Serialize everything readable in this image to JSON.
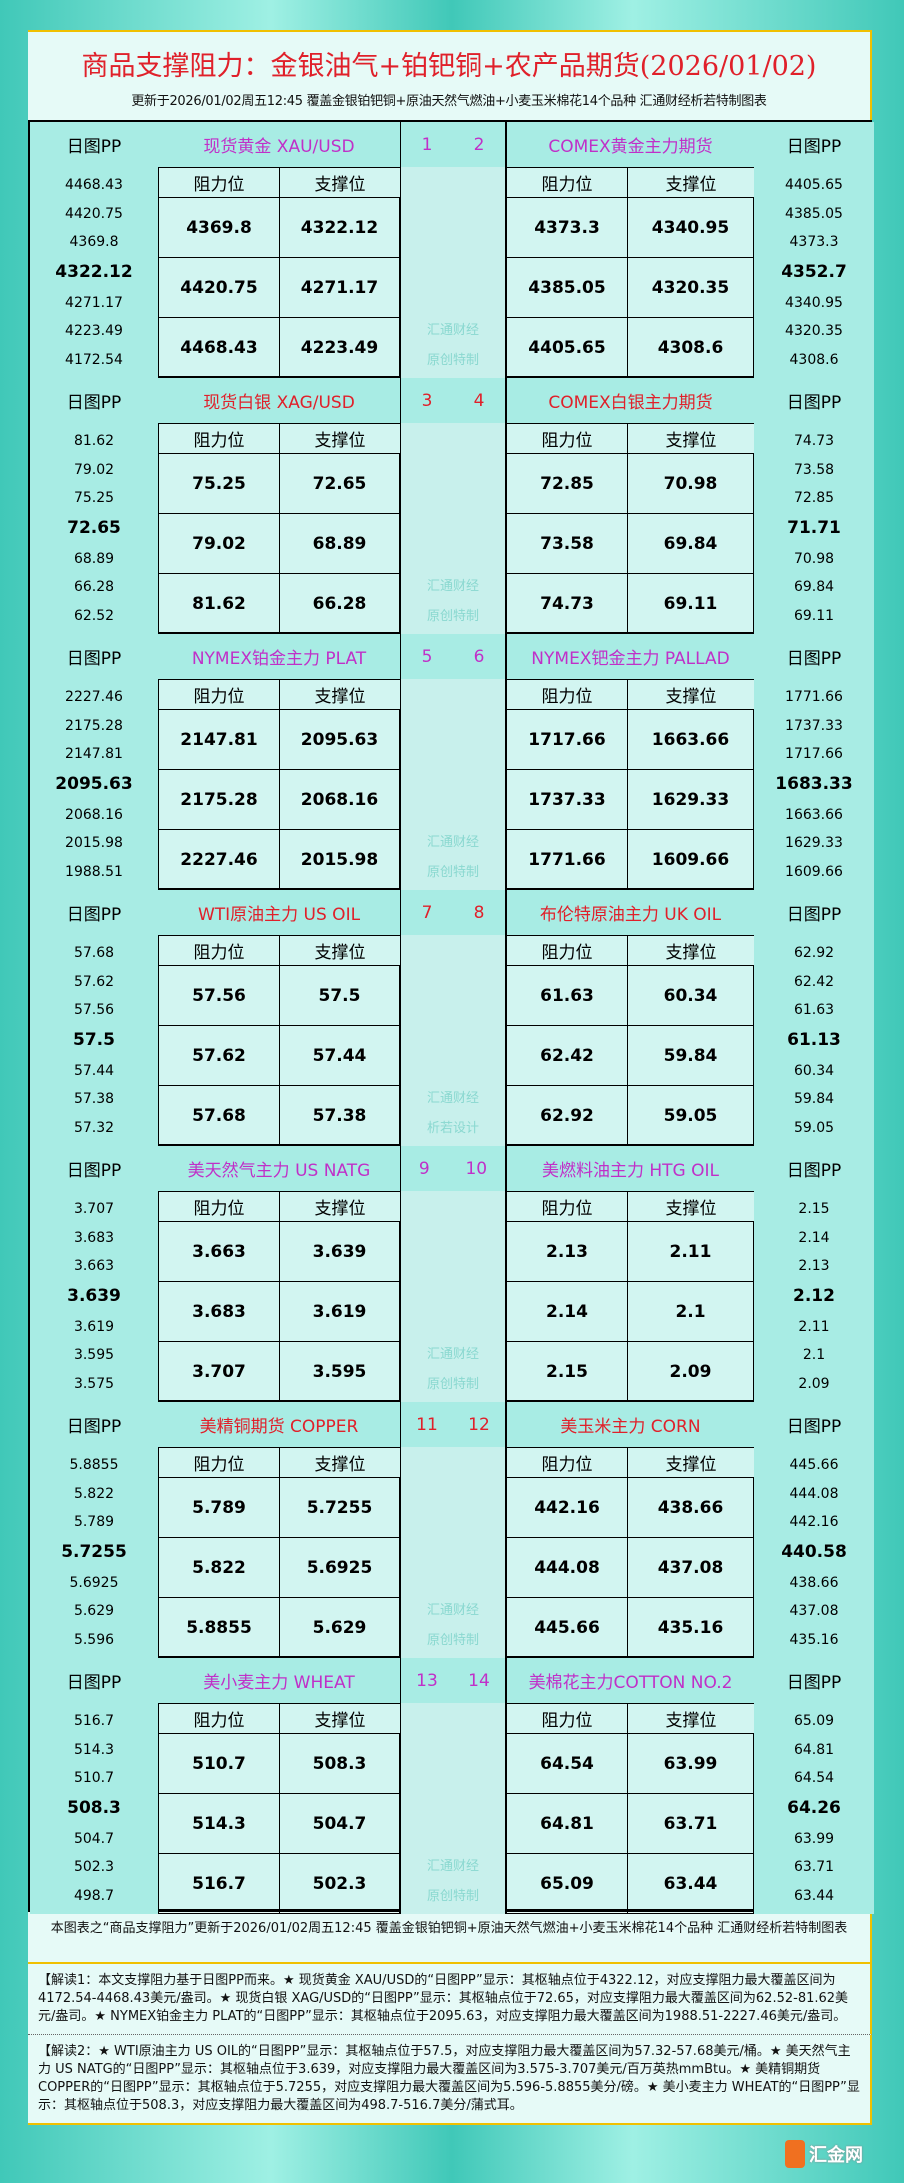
{
  "header": {
    "title": "商品支撑阻力：金银油气+铂钯铜+农产品期货(2026/01/02)",
    "subtitle": "更新于2026/01/02周五12:45 覆盖金银铂钯铜+原油天然气燃油+小麦玉米棉花14个品种 汇通财经析若特制图表"
  },
  "labels": {
    "pp": "日图PP",
    "resistance": "阻力位",
    "support": "支撑位"
  },
  "colors": {
    "red": "#e0202a",
    "purple": "#c030c8",
    "accent_border": "#f0c000"
  },
  "blocks": [
    {
      "color": "purple",
      "left": {
        "name": "现货黄金 XAU/USD",
        "num": "1",
        "pp": [
          "4468.43",
          "4420.75",
          "4369.8",
          "4322.12",
          "4271.17",
          "4223.49",
          "4172.54"
        ],
        "rows": [
          [
            "4369.8",
            "4322.12"
          ],
          [
            "4420.75",
            "4271.17"
          ],
          [
            "4468.43",
            "4223.49"
          ]
        ]
      },
      "right": {
        "name": "COMEX黄金主力期货",
        "num": "2",
        "pp": [
          "4405.65",
          "4385.05",
          "4373.3",
          "4352.7",
          "4340.95",
          "4320.35",
          "4308.6"
        ],
        "rows": [
          [
            "4373.3",
            "4340.95"
          ],
          [
            "4385.05",
            "4320.35"
          ],
          [
            "4405.65",
            "4308.6"
          ]
        ]
      },
      "mark": [
        "汇通财经",
        "原创特制"
      ]
    },
    {
      "color": "red",
      "left": {
        "name": "现货白银 XAG/USD",
        "num": "3",
        "pp": [
          "81.62",
          "79.02",
          "75.25",
          "72.65",
          "68.89",
          "66.28",
          "62.52"
        ],
        "rows": [
          [
            "75.25",
            "72.65"
          ],
          [
            "79.02",
            "68.89"
          ],
          [
            "81.62",
            "66.28"
          ]
        ]
      },
      "right": {
        "name": "COMEX白银主力期货",
        "num": "4",
        "pp": [
          "74.73",
          "73.58",
          "72.85",
          "71.71",
          "70.98",
          "69.84",
          "69.11"
        ],
        "rows": [
          [
            "72.85",
            "70.98"
          ],
          [
            "73.58",
            "69.84"
          ],
          [
            "74.73",
            "69.11"
          ]
        ]
      },
      "mark": [
        "汇通财经",
        "原创特制"
      ]
    },
    {
      "color": "purple",
      "left": {
        "name": "NYMEX铂金主力 PLAT",
        "num": "5",
        "pp": [
          "2227.46",
          "2175.28",
          "2147.81",
          "2095.63",
          "2068.16",
          "2015.98",
          "1988.51"
        ],
        "rows": [
          [
            "2147.81",
            "2095.63"
          ],
          [
            "2175.28",
            "2068.16"
          ],
          [
            "2227.46",
            "2015.98"
          ]
        ]
      },
      "right": {
        "name": "NYMEX钯金主力 PALLAD",
        "num": "6",
        "pp": [
          "1771.66",
          "1737.33",
          "1717.66",
          "1683.33",
          "1663.66",
          "1629.33",
          "1609.66"
        ],
        "rows": [
          [
            "1717.66",
            "1663.66"
          ],
          [
            "1737.33",
            "1629.33"
          ],
          [
            "1771.66",
            "1609.66"
          ]
        ]
      },
      "mark": [
        "汇通财经",
        "原创特制"
      ]
    },
    {
      "color": "red",
      "left": {
        "name": "WTI原油主力 US OIL",
        "num": "7",
        "pp": [
          "57.68",
          "57.62",
          "57.56",
          "57.5",
          "57.44",
          "57.38",
          "57.32"
        ],
        "rows": [
          [
            "57.56",
            "57.5"
          ],
          [
            "57.62",
            "57.44"
          ],
          [
            "57.68",
            "57.38"
          ]
        ]
      },
      "right": {
        "name": "布伦特原油主力 UK OIL",
        "num": "8",
        "pp": [
          "62.92",
          "62.42",
          "61.63",
          "61.13",
          "60.34",
          "59.84",
          "59.05"
        ],
        "rows": [
          [
            "61.63",
            "60.34"
          ],
          [
            "62.42",
            "59.84"
          ],
          [
            "62.92",
            "59.05"
          ]
        ]
      },
      "mark": [
        "汇通财经",
        "析若设计"
      ]
    },
    {
      "color": "purple",
      "left": {
        "name": "美天然气主力 US NATG",
        "num": "9",
        "pp": [
          "3.707",
          "3.683",
          "3.663",
          "3.639",
          "3.619",
          "3.595",
          "3.575"
        ],
        "rows": [
          [
            "3.663",
            "3.639"
          ],
          [
            "3.683",
            "3.619"
          ],
          [
            "3.707",
            "3.595"
          ]
        ]
      },
      "right": {
        "name": "美燃料油主力 HTG OIL",
        "num": "10",
        "pp": [
          "2.15",
          "2.14",
          "2.13",
          "2.12",
          "2.11",
          "2.1",
          "2.09"
        ],
        "rows": [
          [
            "2.13",
            "2.11"
          ],
          [
            "2.14",
            "2.1"
          ],
          [
            "2.15",
            "2.09"
          ]
        ]
      },
      "mark": [
        "汇通财经",
        "原创特制"
      ]
    },
    {
      "color": "red",
      "left": {
        "name": "美精铜期货 COPPER",
        "num": "11",
        "pp": [
          "5.8855",
          "5.822",
          "5.789",
          "5.7255",
          "5.6925",
          "5.629",
          "5.596"
        ],
        "rows": [
          [
            "5.789",
            "5.7255"
          ],
          [
            "5.822",
            "5.6925"
          ],
          [
            "5.8855",
            "5.629"
          ]
        ]
      },
      "right": {
        "name": "美玉米主力 CORN",
        "num": "12",
        "pp": [
          "445.66",
          "444.08",
          "442.16",
          "440.58",
          "438.66",
          "437.08",
          "435.16"
        ],
        "rows": [
          [
            "442.16",
            "438.66"
          ],
          [
            "444.08",
            "437.08"
          ],
          [
            "445.66",
            "435.16"
          ]
        ]
      },
      "mark": [
        "汇通财经",
        "原创特制"
      ]
    },
    {
      "color": "purple",
      "left": {
        "name": "美小麦主力 WHEAT",
        "num": "13",
        "pp": [
          "516.7",
          "514.3",
          "510.7",
          "508.3",
          "504.7",
          "502.3",
          "498.7"
        ],
        "rows": [
          [
            "510.7",
            "508.3"
          ],
          [
            "514.3",
            "504.7"
          ],
          [
            "516.7",
            "502.3"
          ]
        ]
      },
      "right": {
        "name": "美棉花主力COTTON NO.2",
        "num": "14",
        "pp": [
          "65.09",
          "64.81",
          "64.54",
          "64.26",
          "63.99",
          "63.71",
          "63.44"
        ],
        "rows": [
          [
            "64.54",
            "63.99"
          ],
          [
            "64.81",
            "63.71"
          ],
          [
            "65.09",
            "63.44"
          ]
        ]
      },
      "mark": [
        "汇通财经",
        "原创特制"
      ]
    }
  ],
  "footer": {
    "note": "本图表之“商品支撑阻力”更新于2026/01/02周五12:45 覆盖金银铂钯铜+原油天然气燃油+小麦玉米棉花14个品种 汇通财经析若特制图表",
    "interp1": "【解读1：本文支撑阻力基于日图PP而来。★ 现货黄金 XAU/USD的“日图PP”显示：其枢轴点位于4322.12，对应支撑阻力最大覆盖区间为4172.54-4468.43美元/盎司。★ 现货白银 XAG/USD的“日图PP”显示：其枢轴点位于72.65，对应支撑阻力最大覆盖区间为62.52-81.62美元/盎司。★ NYMEX铂金主力 PLAT的“日图PP”显示：其枢轴点位于2095.63，对应支撑阻力最大覆盖区间为1988.51-2227.46美元/盎司。",
    "interp2": "【解读2：★ WTI原油主力 US OIL的“日图PP”显示：其枢轴点位于57.5，对应支撑阻力最大覆盖区间为57.32-57.68美元/桶。★ 美天然气主力 US NATG的“日图PP”显示：其枢轴点位于3.639，对应支撑阻力最大覆盖区间为3.575-3.707美元/百万英热mmBtu。★ 美精铜期货 COPPER的“日图PP”显示：其枢轴点位于5.7255，对应支撑阻力最大覆盖区间为5.596-5.8855美分/磅。★ 美小麦主力 WHEAT的“日图PP”显示：其枢轴点位于508.3，对应支撑阻力最大覆盖区间为498.7-516.7美分/蒲式耳。",
    "logo": "汇金网"
  }
}
